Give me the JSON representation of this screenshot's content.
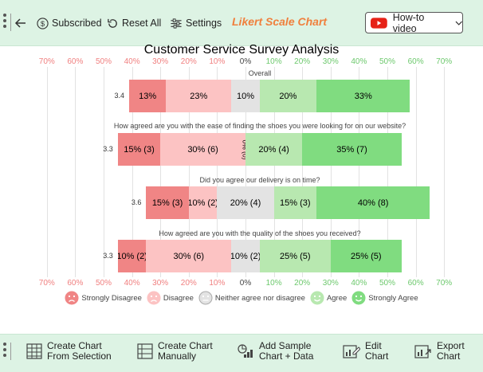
{
  "toolbar": {
    "subscribed_label": "Subscribed",
    "reset_label": "Reset All",
    "settings_label": "Settings",
    "chart_name": "Likert Scale Chart",
    "howto_label": "How-to video"
  },
  "chart_data": {
    "type": "bar",
    "orientation": "horizontal-diverging",
    "title": "Customer Service Survey Analysis",
    "x_ticks": [
      "70%",
      "60%",
      "50%",
      "40%",
      "30%",
      "20%",
      "10%",
      "0%",
      "10%",
      "20%",
      "30%",
      "40%",
      "50%",
      "60%",
      "70%"
    ],
    "xlim": [
      -70,
      70
    ],
    "categories": [
      "Overall",
      "How agreed are you with the ease of finding the shoes you were looking for on our website?",
      "Did you agree our delivery is on time?",
      "How agreed are you with the quality of the shoes you received?"
    ],
    "scores": [
      "3.4",
      "3.3",
      "3.6",
      "3.3"
    ],
    "series": [
      {
        "name": "Strongly Disagree",
        "values": [
          13,
          15,
          15,
          10
        ],
        "labels": [
          "13%",
          "15% (3)",
          "15% (3)",
          "10% (2)"
        ],
        "color": "#f08585"
      },
      {
        "name": "Disagree",
        "values": [
          23,
          30,
          10,
          30
        ],
        "labels": [
          "23%",
          "30% (6)",
          "10% (2)",
          "30% (6)"
        ],
        "color": "#fcc3c3"
      },
      {
        "name": "Neither agree nor disagree",
        "values": [
          10,
          0,
          20,
          10
        ],
        "labels": [
          "10%",
          "0% (0)",
          "20% (4)",
          "10% (2)"
        ],
        "color": "#e3e3e3"
      },
      {
        "name": "Agree",
        "values": [
          20,
          20,
          15,
          25
        ],
        "labels": [
          "20%",
          "20% (4)",
          "15% (3)",
          "25% (5)"
        ],
        "color": "#b8e8b0"
      },
      {
        "name": "Strongly Agree",
        "values": [
          33,
          35,
          40,
          25
        ],
        "labels": [
          "33%",
          "35% (7)",
          "40% (8)",
          "25% (5)"
        ],
        "color": "#80dc80"
      }
    ],
    "legend_position": "bottom",
    "grid": true
  },
  "colors": {
    "negative_tick": "#f07f7f",
    "neutral_tick": "#444444",
    "positive_tick": "#6cc86c",
    "accent": "#f07f3c",
    "toolbar_bg": "#ddf3e4"
  },
  "bottom": {
    "create_selection": [
      "Create Chart",
      "From Selection"
    ],
    "create_manual": [
      "Create Chart",
      "Manually"
    ],
    "add_sample": [
      "Add Sample",
      "Chart + Data"
    ],
    "edit": [
      "Edit",
      "Chart"
    ],
    "export": [
      "Export",
      "Chart"
    ]
  }
}
